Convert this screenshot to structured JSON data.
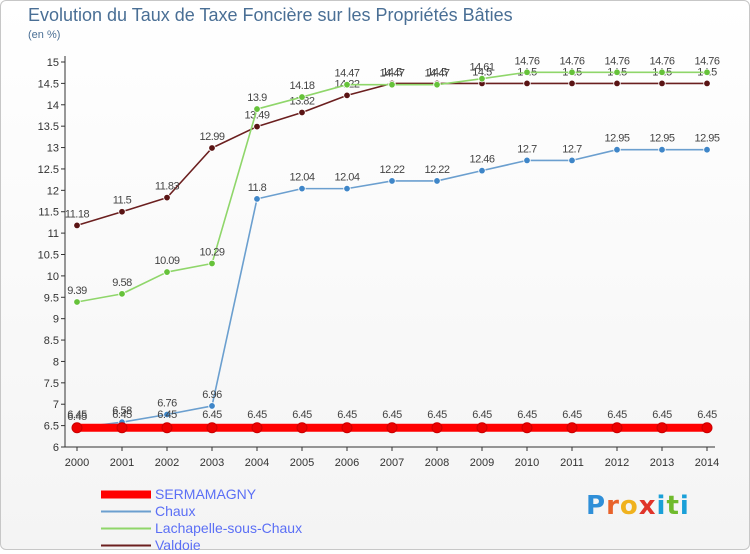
{
  "header": {
    "title": "Evolution du Taux de Taxe Foncière sur les Propriétés Bâties",
    "unit": "(en %)"
  },
  "logo": {
    "text": "Proxiti",
    "letters": [
      "P",
      "r",
      "o",
      "x",
      "i",
      "t",
      "i"
    ],
    "colors": [
      "#2f8fd8",
      "#e8632b",
      "#f0b21e",
      "#e0342a",
      "#1aa0d8",
      "#6fba2c",
      "#1aa0d8"
    ]
  },
  "chart_data": {
    "type": "line",
    "title": "Evolution du Taux de Taxe Foncière sur les Propriétés Bâties",
    "ylabel": "(en %)",
    "xlabel": "",
    "x": [
      "2000",
      "2001",
      "2002",
      "2003",
      "2004",
      "2005",
      "2006",
      "2007",
      "2008",
      "2009",
      "2010",
      "2011",
      "2012",
      "2013",
      "2014"
    ],
    "ylim": [
      6,
      15
    ],
    "ytick_step": 0.5,
    "yticks": [
      "6",
      "6.5",
      "7",
      "7.5",
      "8",
      "8.5",
      "9",
      "9.5",
      "10",
      "10.5",
      "11",
      "11.5",
      "12",
      "12.5",
      "13",
      "13.5",
      "14",
      "14.5",
      "15"
    ],
    "grid": false,
    "legend_position": "bottom-left",
    "series": [
      {
        "name": "Valdoie",
        "color": "#6b1f1f",
        "marker": "#5a1414",
        "values": [
          11.18,
          11.5,
          11.83,
          12.99,
          13.49,
          13.82,
          14.22,
          14.5,
          14.5,
          14.5,
          14.5,
          14.5,
          14.5,
          14.5,
          14.5
        ],
        "labels": [
          "11.18",
          "11.5",
          "11.83",
          "12.99",
          "13.49",
          "13.82",
          "14.22",
          "14.5",
          "14.5",
          "14.5",
          "14.5",
          "14.5",
          "14.5",
          "14.5",
          "14.5"
        ]
      },
      {
        "name": "Lachapelle-sous-Chaux",
        "color": "#8fd66a",
        "marker": "#66c23a",
        "values": [
          9.39,
          9.58,
          10.09,
          10.29,
          13.9,
          14.18,
          14.47,
          14.47,
          14.47,
          14.61,
          14.76,
          14.76,
          14.76,
          14.76,
          14.76
        ],
        "labels": [
          "9.39",
          "9.58",
          "10.09",
          "10.29",
          "13.9",
          "14.18",
          "14.47",
          "14.47",
          "14.47",
          "14.61",
          "14.76",
          "14.76",
          "14.76",
          "14.76",
          "14.76"
        ]
      },
      {
        "name": "Chaux",
        "color": "#6b9fcf",
        "marker": "#3f86c8",
        "values": [
          6.45,
          6.58,
          6.76,
          6.96,
          11.8,
          12.04,
          12.04,
          12.22,
          12.22,
          12.46,
          12.7,
          12.7,
          12.95,
          12.95,
          12.95
        ],
        "labels": [
          "6.45",
          "6.58",
          "6.76",
          "6.96",
          "11.8",
          "12.04",
          "12.04",
          "12.22",
          "12.22",
          "12.46",
          "12.7",
          "12.7",
          "12.95",
          "12.95",
          "12.95"
        ]
      },
      {
        "name": "SERMAMAGNY",
        "color": "#ff0000",
        "marker": "#ee0000",
        "thick": true,
        "values": [
          6.45,
          6.45,
          6.45,
          6.45,
          6.45,
          6.45,
          6.45,
          6.45,
          6.45,
          6.45,
          6.45,
          6.45,
          6.45,
          6.45,
          6.45
        ],
        "labels": [
          "6.45",
          "6.45",
          "6.45",
          "6.45",
          "6.45",
          "6.45",
          "6.45",
          "6.45",
          "6.45",
          "6.45",
          "6.45",
          "6.45",
          "6.45",
          "6.45",
          "6.45"
        ]
      }
    ],
    "legend": [
      "SERMAMAGNY",
      "Chaux",
      "Lachapelle-sous-Chaux",
      "Valdoie"
    ]
  }
}
